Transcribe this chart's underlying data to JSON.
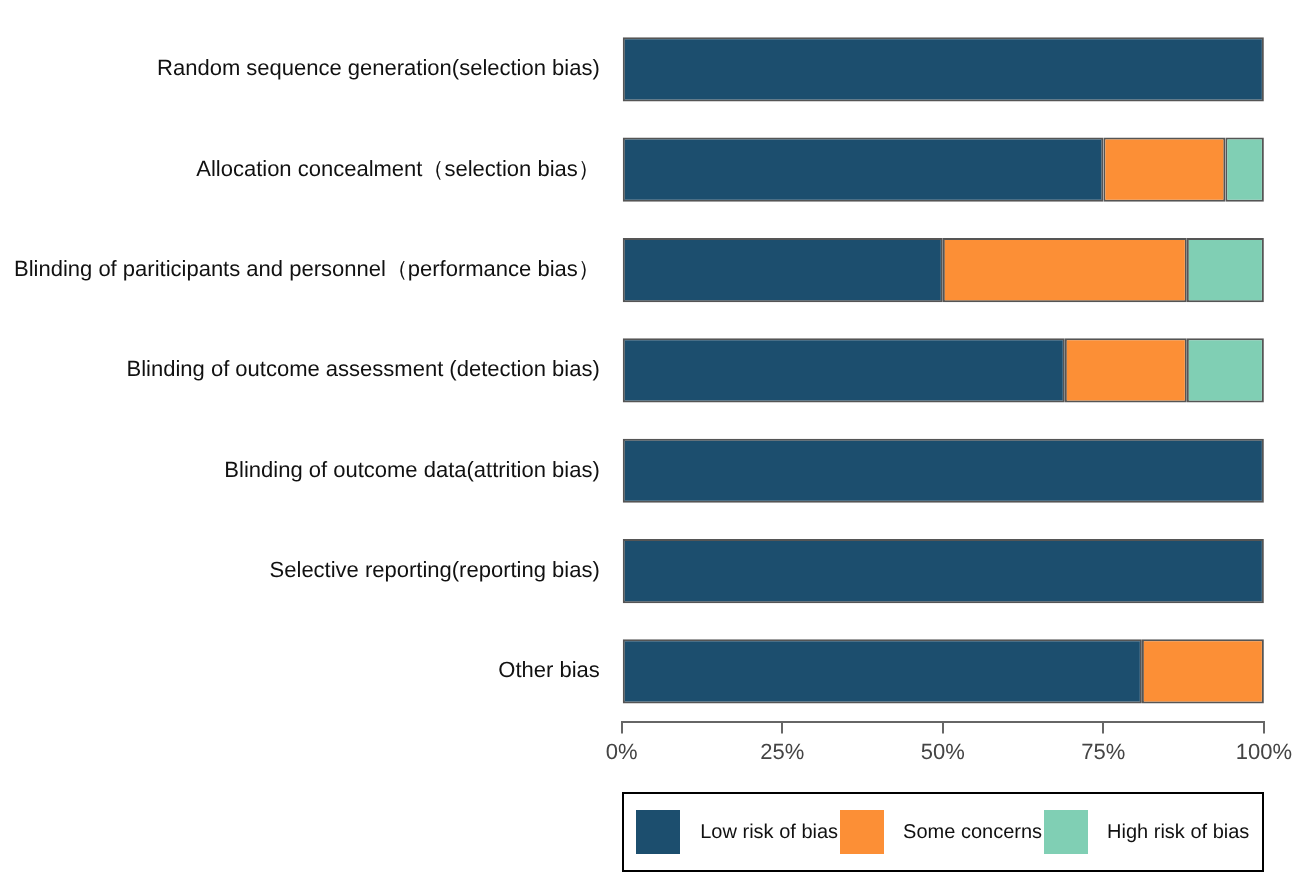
{
  "chart_data": {
    "type": "bar",
    "orientation": "horizontal",
    "stacked": true,
    "categories": [
      "Random sequence generation(selection bias)",
      "Allocation concealment（selection bias）",
      "Blinding of pariticipants and personnel（performance bias）",
      "Blinding of outcome assessment (detection bias)",
      "Blinding of outcome data(attrition bias)",
      "Selective reporting(reporting bias)",
      "Other bias"
    ],
    "series": [
      {
        "name": "Low risk of bias",
        "color": "#1c4e6e",
        "values": [
          100,
          75,
          50,
          69,
          100,
          100,
          81
        ]
      },
      {
        "name": "Some concerns",
        "color": "#fc8f36",
        "values": [
          0,
          19,
          38,
          19,
          0,
          0,
          19
        ]
      },
      {
        "name": "High risk of bias",
        "color": "#80cfb4",
        "values": [
          0,
          6,
          12,
          12,
          0,
          0,
          0
        ]
      }
    ],
    "xlim": [
      0,
      100
    ],
    "xticks": [
      {
        "value": 0,
        "label": "0%"
      },
      {
        "value": 25,
        "label": "25%"
      },
      {
        "value": 50,
        "label": "50%"
      },
      {
        "value": 75,
        "label": "75%"
      },
      {
        "value": 100,
        "label": "100%"
      }
    ],
    "grid": false,
    "legend": "bottom"
  }
}
